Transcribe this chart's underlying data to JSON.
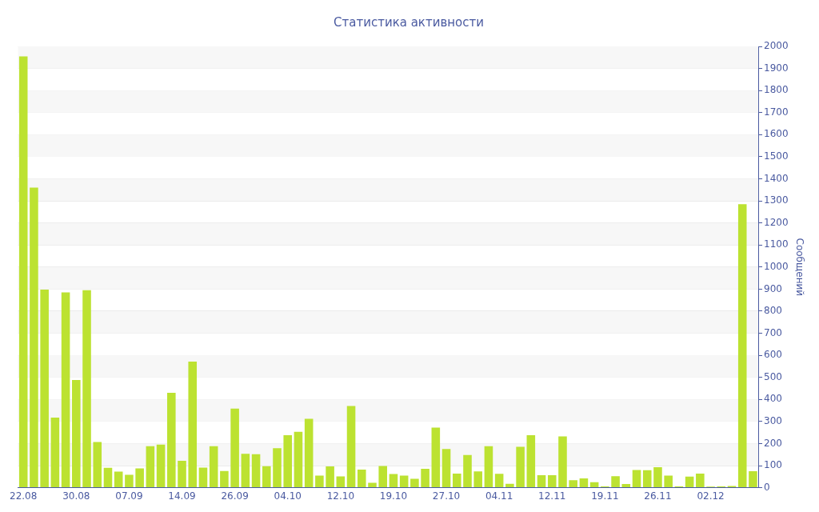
{
  "chart_data": {
    "type": "bar",
    "title": "Статистика активности",
    "ylabel": "Сообщений",
    "categories": [
      "22.08",
      null,
      null,
      null,
      null,
      "30.08",
      null,
      null,
      null,
      null,
      "07.09",
      null,
      null,
      null,
      null,
      "14.09",
      null,
      null,
      null,
      null,
      "26.09",
      null,
      null,
      null,
      null,
      "04.10",
      null,
      null,
      null,
      null,
      "12.10",
      null,
      null,
      null,
      null,
      "19.10",
      null,
      null,
      null,
      null,
      "27.10",
      null,
      null,
      null,
      null,
      "04.11",
      null,
      null,
      null,
      null,
      "12.11",
      null,
      null,
      null,
      null,
      "19.11",
      null,
      null,
      null,
      null,
      "26.11",
      null,
      null,
      null,
      null,
      "02.12",
      null,
      null,
      null,
      null
    ],
    "values": [
      1955,
      1360,
      898,
      318,
      885,
      488,
      895,
      207,
      90,
      73,
      58,
      87,
      188,
      195,
      430,
      122,
      571,
      91,
      188,
      76,
      358,
      154,
      152,
      97,
      179,
      238,
      253,
      312,
      55,
      96,
      51,
      370,
      82,
      22,
      98,
      62,
      55,
      40,
      86,
      272,
      175,
      64,
      148,
      74,
      188,
      63,
      18,
      185,
      238,
      57,
      57,
      232,
      34,
      42,
      25,
      6,
      52,
      17,
      80,
      79,
      93,
      55,
      6,
      50,
      64,
      5,
      6,
      8,
      1285,
      75
    ],
    "color": "#bce231",
    "ylim": [
      0,
      2000
    ],
    "yticks": [
      0,
      100,
      200,
      300,
      400,
      500,
      600,
      700,
      800,
      900,
      1000,
      1100,
      1200,
      1300,
      1400,
      1500,
      1600,
      1700,
      1800,
      1900,
      2000
    ],
    "grid": "y",
    "legend": false
  }
}
